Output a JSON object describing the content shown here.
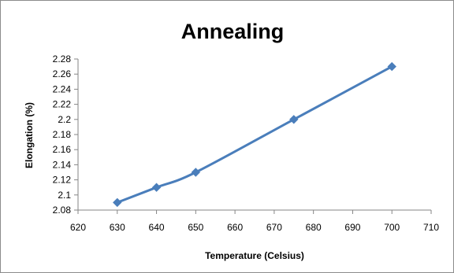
{
  "chart_data": {
    "type": "line",
    "title": "Annealing",
    "xlabel": "Temperature (Celsius)",
    "ylabel": "Elongation (%)",
    "xlim": [
      620,
      710
    ],
    "xticks": [
      620,
      630,
      640,
      650,
      660,
      670,
      680,
      690,
      700,
      710
    ],
    "xtick_labels": [
      "620",
      "630",
      "640",
      "650",
      "660",
      "670",
      "680",
      "690",
      "700",
      "710"
    ],
    "ylim": [
      2.08,
      2.28
    ],
    "yticks": [
      2.08,
      2.1,
      2.12,
      2.14,
      2.16,
      2.18,
      2.2,
      2.22,
      2.24,
      2.26,
      2.28
    ],
    "ytick_labels": [
      "2.08",
      "2.1",
      "2.12",
      "2.14",
      "2.16",
      "2.18",
      "2.2",
      "2.22",
      "2.24",
      "2.26",
      "2.28"
    ],
    "grid": false,
    "legend": false,
    "series": [
      {
        "x": [
          630,
          640,
          650,
          675,
          700
        ],
        "y": [
          2.09,
          2.11,
          2.13,
          2.2,
          2.27
        ],
        "color": "#4a7ebb",
        "marker": "diamond",
        "smooth": true
      }
    ]
  }
}
